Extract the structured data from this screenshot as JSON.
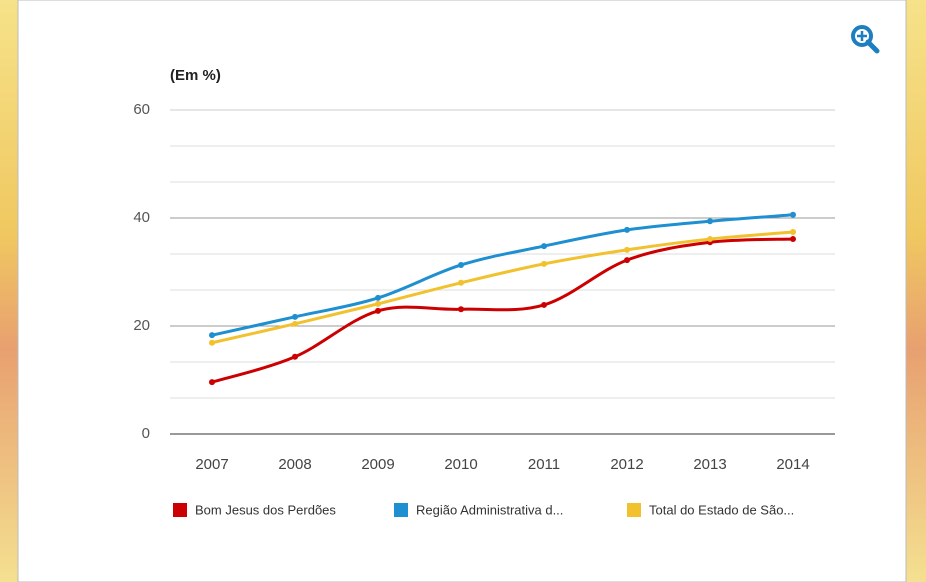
{
  "chart_data": {
    "type": "line",
    "y_axis_label": "(Em %)",
    "categories": [
      "2007",
      "2008",
      "2009",
      "2010",
      "2011",
      "2012",
      "2013",
      "2014"
    ],
    "series": [
      {
        "name": "Bom Jesus dos Perdões",
        "color": "#cc0000",
        "values": [
          9.6,
          14.3,
          22.8,
          23.1,
          23.9,
          32.2,
          35.5,
          36.1
        ]
      },
      {
        "name": "Região Administrativa d...",
        "color": "#1e8fd0",
        "values": [
          18.3,
          21.7,
          25.2,
          31.3,
          34.8,
          37.8,
          39.4,
          40.6
        ]
      },
      {
        "name": "Total do Estado de São...",
        "color": "#f2c12e",
        "values": [
          16.9,
          20.4,
          24.1,
          28,
          31.5,
          34.1,
          36.1,
          37.4
        ]
      }
    ],
    "ylim": [
      0,
      60
    ],
    "yticks": [
      0,
      20,
      40,
      60
    ],
    "grid": true,
    "legend": "bottom"
  }
}
